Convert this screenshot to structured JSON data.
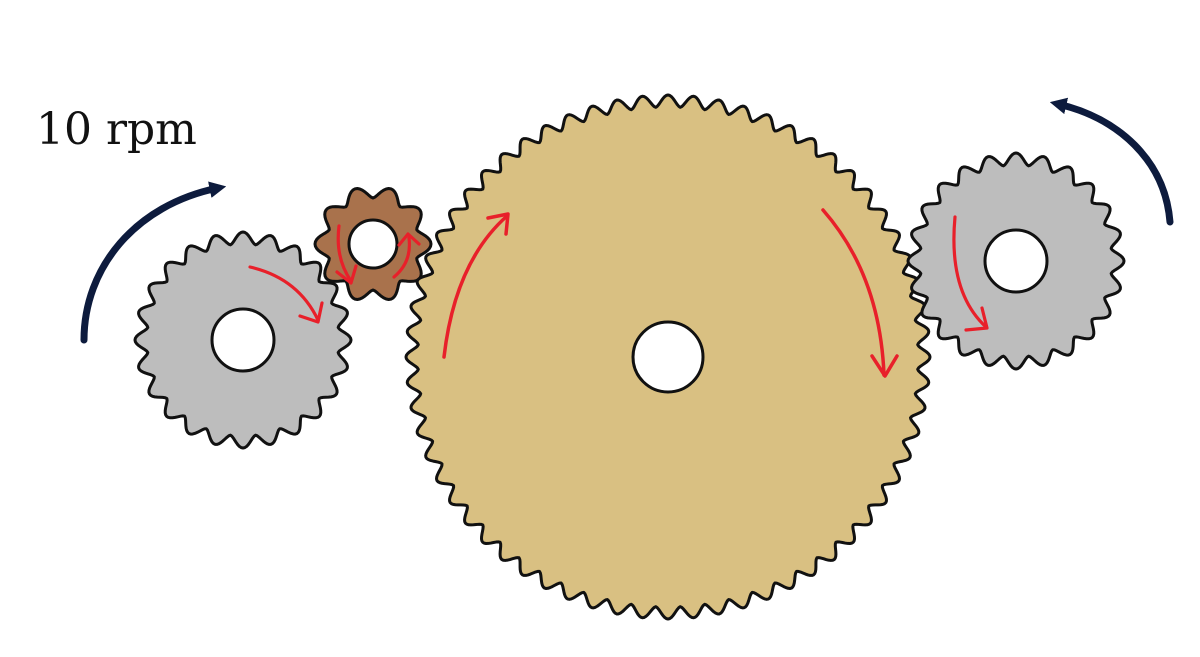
{
  "input_speed_label": "10 rpm",
  "colors": {
    "outline": "#111111",
    "gray_gear": "#bdbdbd",
    "brown_gear": "#a9724c",
    "large_gear": "#d9c082",
    "hub_hole": "#ffffff",
    "indicator_arrow": "#e8202a",
    "input_arrow": "#0d1b3d"
  },
  "gears": [
    {
      "id": "gear-left",
      "fill": "gray_gear",
      "teeth": 24
    },
    {
      "id": "gear-small",
      "fill": "brown_gear",
      "teeth": 10
    },
    {
      "id": "gear-large",
      "fill": "large_gear",
      "teeth": 64
    },
    {
      "id": "gear-right",
      "fill": "gray_gear",
      "teeth": 24
    }
  ]
}
